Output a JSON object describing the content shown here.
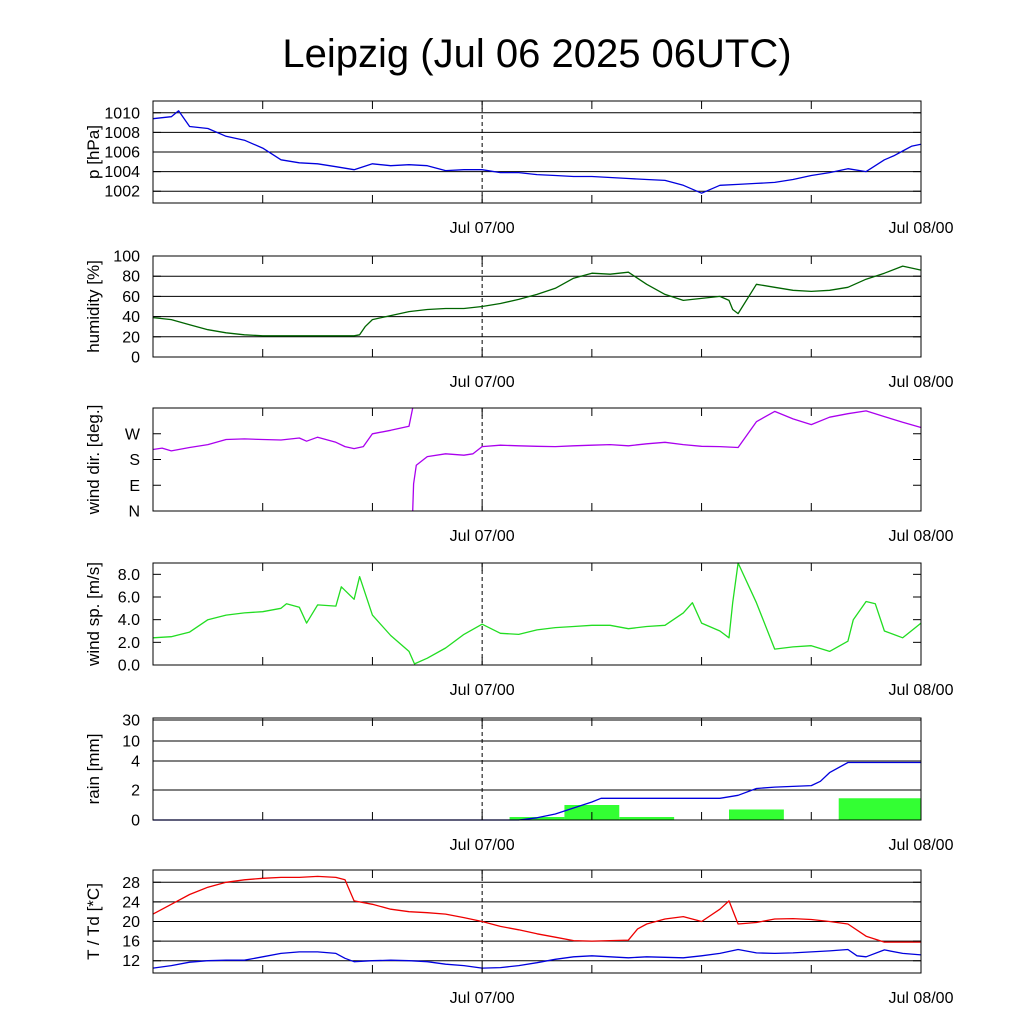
{
  "title": "Leipzig (Jul 06 2025 06UTC)",
  "chart_data": [
    {
      "type": "line",
      "ylabel": "p [hPa]",
      "ylim": [
        1000.8,
        1011.2
      ],
      "yticks": [
        1002,
        1004,
        1006,
        1008,
        1010
      ],
      "ytick_labels": [
        "1002",
        "1004",
        "1006",
        "1008",
        "1010"
      ],
      "xlim": [
        0,
        42
      ],
      "x_tick_labels": [
        {
          "x": 18,
          "label": "Jul 07/00"
        },
        {
          "x": 42,
          "label": "Jul 08/00"
        }
      ],
      "grid": "horizontal",
      "series": [
        {
          "color": "#0000dd",
          "x": [
            0,
            0.5,
            1,
            1.4,
            2,
            3,
            4,
            5,
            6,
            7,
            8,
            9,
            10,
            11,
            12,
            13,
            14,
            15,
            16,
            17,
            18,
            19,
            20,
            21,
            22,
            23,
            24,
            25,
            26,
            27,
            28,
            29,
            30,
            31,
            32,
            33,
            34,
            35,
            36,
            37,
            38,
            39,
            40,
            40.5,
            41,
            41.5,
            42
          ],
          "y": [
            1009.4,
            1009.5,
            1009.6,
            1010.2,
            1008.6,
            1008.4,
            1007.6,
            1007.2,
            1006.4,
            1005.2,
            1004.9,
            1004.8,
            1004.5,
            1004.2,
            1004.8,
            1004.6,
            1004.7,
            1004.6,
            1004.1,
            1004.2,
            1004.2,
            1003.9,
            1003.9,
            1003.7,
            1003.6,
            1003.5,
            1003.5,
            1003.4,
            1003.3,
            1003.2,
            1003.1,
            1002.6,
            1001.8,
            1002.6,
            1002.7,
            1002.8,
            1002.9,
            1003.2,
            1003.6,
            1003.9,
            1004.3,
            1004.0,
            1005.2,
            1005.6,
            1006.1,
            1006.6,
            1006.8
          ]
        }
      ]
    },
    {
      "type": "line",
      "ylabel": "humidity [%]",
      "ylim": [
        0,
        100
      ],
      "yticks": [
        0,
        20,
        40,
        60,
        80,
        100
      ],
      "ytick_labels": [
        "0",
        "20",
        "40",
        "60",
        "80",
        "100"
      ],
      "xlim": [
        0,
        42
      ],
      "x_tick_labels": [
        {
          "x": 18,
          "label": "Jul 07/00"
        },
        {
          "x": 42,
          "label": "Jul 08/00"
        }
      ],
      "grid": "horizontal",
      "series": [
        {
          "color": "#006400",
          "x": [
            0,
            1,
            2,
            3,
            4,
            5,
            6,
            7,
            8,
            9,
            10,
            11,
            11.3,
            11.6,
            12,
            13,
            14,
            15,
            16,
            17,
            18,
            19,
            20,
            21,
            22,
            23,
            24,
            25,
            26,
            27,
            28,
            29,
            30,
            31,
            31.5,
            31.7,
            32,
            33,
            34,
            35,
            36,
            37,
            38,
            39,
            40,
            41,
            42
          ],
          "y": [
            39,
            37,
            32,
            27,
            24,
            22,
            21,
            21,
            21,
            21,
            21,
            21,
            22,
            30,
            37,
            41,
            45,
            47,
            48,
            48,
            50,
            53,
            57,
            62,
            68,
            78,
            83,
            82,
            84,
            72,
            62,
            56,
            58,
            60,
            56,
            47,
            43,
            72,
            69,
            66,
            65,
            66,
            69,
            77,
            83,
            90,
            86
          ]
        }
      ]
    },
    {
      "type": "line",
      "ylabel": "wind dir. [deg.]",
      "ylim": [
        0,
        360
      ],
      "yticks": [
        0,
        90,
        180,
        270
      ],
      "ytick_labels": [
        "N",
        "E",
        "S",
        "W"
      ],
      "xlim": [
        0,
        42
      ],
      "x_tick_labels": [
        {
          "x": 18,
          "label": "Jul 07/00"
        },
        {
          "x": 42,
          "label": "Jul 08/00"
        }
      ],
      "grid": "none",
      "series": [
        {
          "color": "#aa00ee",
          "x": [
            0,
            0.5,
            1,
            2,
            3,
            4,
            5,
            6,
            7,
            8,
            8.4,
            9,
            10,
            10.5,
            11,
            11.5,
            12,
            13,
            14,
            14.2
          ],
          "y": [
            215,
            220,
            210,
            222,
            232,
            250,
            252,
            250,
            248,
            255,
            244,
            258,
            240,
            225,
            218,
            225,
            270,
            282,
            296,
            360
          ]
        },
        {
          "color": "#aa00ee",
          "x": [
            14.2,
            14.25,
            14.4,
            14.8,
            15,
            16,
            17,
            17.5,
            18,
            19,
            20,
            21,
            22,
            23,
            24,
            25,
            26,
            27,
            28,
            29,
            30,
            31,
            32,
            33,
            34,
            35,
            36,
            37,
            38,
            39,
            40,
            41,
            42
          ],
          "y": [
            0,
            95,
            160,
            180,
            190,
            200,
            195,
            200,
            225,
            230,
            228,
            226,
            225,
            228,
            230,
            232,
            228,
            235,
            240,
            232,
            226,
            225,
            222,
            312,
            348,
            322,
            302,
            328,
            340,
            350,
            330,
            310,
            292
          ]
        }
      ]
    },
    {
      "type": "line",
      "ylabel": "wind sp. [m/s]",
      "ylim": [
        0,
        9.0
      ],
      "yticks": [
        0,
        2,
        4,
        6,
        8
      ],
      "ytick_labels": [
        "0.0",
        "2.0",
        "4.0",
        "6.0",
        "8.0"
      ],
      "xlim": [
        0,
        42
      ],
      "x_tick_labels": [
        {
          "x": 18,
          "label": "Jul 07/00"
        },
        {
          "x": 42,
          "label": "Jul 08/00"
        }
      ],
      "grid": "none",
      "series": [
        {
          "color": "#22dd22",
          "x": [
            0,
            1,
            2,
            3,
            4,
            5,
            6,
            7,
            7.3,
            8,
            8.4,
            9,
            10,
            10.3,
            11,
            11.3,
            12,
            13,
            14,
            14.3,
            15,
            16,
            17,
            18,
            19,
            20,
            21,
            22,
            23,
            24,
            25,
            26,
            27,
            28,
            29,
            29.5,
            30,
            31,
            31.5,
            31.7,
            32,
            33,
            34,
            35,
            36,
            37,
            38,
            38.3,
            39,
            39.5,
            40,
            41,
            42
          ],
          "y": [
            2.4,
            2.5,
            2.9,
            4.0,
            4.4,
            4.6,
            4.7,
            5.0,
            5.4,
            5.1,
            3.7,
            5.3,
            5.2,
            6.9,
            5.8,
            7.8,
            4.4,
            2.6,
            1.2,
            0.1,
            0.6,
            1.5,
            2.7,
            3.6,
            2.8,
            2.7,
            3.1,
            3.3,
            3.4,
            3.5,
            3.5,
            3.2,
            3.4,
            3.5,
            4.6,
            5.5,
            3.7,
            3.0,
            2.4,
            5.5,
            9.0,
            5.5,
            1.4,
            1.6,
            1.7,
            1.2,
            2.1,
            4.0,
            5.6,
            5.4,
            3.0,
            2.4,
            3.7
          ]
        }
      ]
    },
    {
      "type": "bar",
      "ylabel": "rain [mm]",
      "yscale": "nonlinear",
      "yticks": [
        0,
        2,
        4,
        10,
        30
      ],
      "ytick_labels": [
        "0",
        "2",
        "4",
        "10",
        "30"
      ],
      "xlim": [
        0,
        42
      ],
      "x_tick_labels": [
        {
          "x": 18,
          "label": "Jul 07/00"
        },
        {
          "x": 42,
          "label": "Jul 08/00"
        }
      ],
      "grid": "horizontal",
      "bars": {
        "color": "#33ff33",
        "x_start": [
          19.5,
          22.5,
          25.5,
          31.5,
          37.5
        ],
        "x_end": [
          22.5,
          25.5,
          28.5,
          34.5,
          42
        ],
        "values": [
          0.2,
          1.0,
          0.2,
          0.7,
          1.45
        ]
      },
      "series": [
        {
          "color": "#0000dd",
          "x": [
            0,
            18,
            20,
            21,
            22,
            23,
            23.5,
            24,
            24.5,
            31,
            32,
            33,
            34,
            36,
            36.5,
            37,
            38,
            40,
            42
          ],
          "y": [
            0,
            0,
            0,
            0.15,
            0.4,
            0.8,
            1.0,
            1.2,
            1.45,
            1.45,
            1.65,
            2.1,
            2.2,
            2.3,
            2.6,
            3.2,
            3.9,
            3.9,
            3.9
          ]
        }
      ]
    },
    {
      "type": "line",
      "ylabel": "T / Td [*C]",
      "ylim": [
        9.5,
        30.5
      ],
      "yticks": [
        12,
        16,
        20,
        24,
        28
      ],
      "ytick_labels": [
        "12",
        "16",
        "20",
        "24",
        "28"
      ],
      "xlim": [
        0,
        42
      ],
      "x_tick_labels": [
        {
          "x": 18,
          "label": "Jul 07/00"
        },
        {
          "x": 42,
          "label": "Jul 08/00"
        }
      ],
      "grid": "horizontal",
      "series": [
        {
          "color": "#ee0000",
          "x": [
            0,
            1,
            2,
            3,
            4,
            5,
            6,
            7,
            8,
            9,
            10,
            10.5,
            11,
            12,
            13,
            14,
            15,
            16,
            17,
            18,
            19,
            20,
            21,
            22,
            23,
            24,
            25,
            26,
            26.5,
            27,
            28,
            29,
            30,
            31,
            31.5,
            32,
            33,
            34,
            35,
            36,
            37,
            38,
            39,
            40,
            41,
            42
          ],
          "y": [
            21.5,
            23.5,
            25.5,
            27,
            28,
            28.5,
            28.8,
            29.0,
            29.0,
            29.2,
            29.0,
            28.5,
            24.2,
            23.5,
            22.5,
            22,
            21.8,
            21.5,
            20.8,
            20,
            19,
            18.3,
            17.5,
            16.8,
            16.1,
            16.0,
            16.1,
            16.2,
            18.5,
            19.5,
            20.5,
            21,
            20.0,
            22.5,
            24.2,
            19.5,
            19.8,
            20.5,
            20.6,
            20.4,
            20.0,
            19.5,
            17,
            15.8,
            15.8,
            15.8
          ]
        },
        {
          "color": "#0000dd",
          "x": [
            0,
            1,
            2,
            3,
            4,
            5,
            6,
            7,
            8,
            9,
            10,
            10.5,
            11,
            12,
            13,
            14,
            15,
            16,
            17,
            18,
            19,
            20,
            21,
            22,
            23,
            24,
            25,
            26,
            27,
            28,
            29,
            30,
            31,
            32,
            33,
            34,
            35,
            36,
            37,
            38,
            38.5,
            39,
            40,
            41,
            42
          ],
          "y": [
            10.5,
            11.0,
            11.7,
            12.0,
            12.1,
            12.1,
            12.8,
            13.5,
            13.8,
            13.8,
            13.5,
            12.5,
            11.8,
            12.0,
            12.1,
            12.0,
            11.8,
            11.3,
            11.0,
            10.5,
            10.6,
            11.0,
            11.6,
            12.3,
            12.8,
            13.0,
            12.8,
            12.6,
            12.8,
            12.7,
            12.6,
            13.0,
            13.5,
            14.3,
            13.6,
            13.5,
            13.6,
            13.8,
            14.0,
            14.3,
            13.0,
            12.8,
            14.2,
            13.5,
            13.2
          ]
        }
      ]
    }
  ]
}
